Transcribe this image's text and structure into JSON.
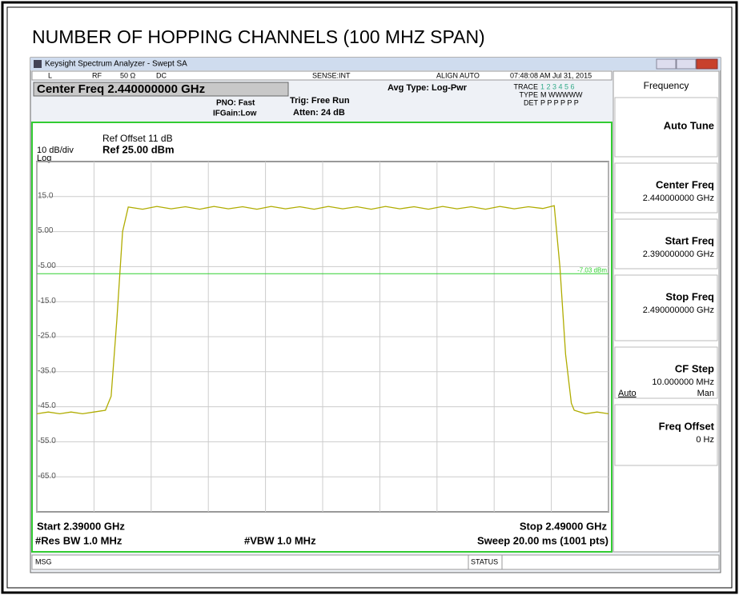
{
  "heading": "NUMBER OF HOPPING CHANNELS (100 MHZ SPAN)",
  "window_title": "Keysight Spectrum Analyzer - Swept SA",
  "status_row": [
    "L",
    "RF",
    "50 Ω",
    "DC",
    "SENSE:INT",
    "ALIGN AUTO",
    "07:48:08 AM Jul 31, 2015"
  ],
  "center_freq": "Center Freq 2.440000000 GHz",
  "pno": "PNO: Fast",
  "ifgain": "IFGain:Low",
  "trig": "Trig: Free Run",
  "atten": "Atten: 24 dB",
  "avg_type": "Avg Type: Log-Pwr",
  "trace_info": {
    "trace": "TRACE",
    "trace_nums": "1 2 3 4 5 6",
    "type": "TYPE",
    "type_val": "M WWWWW",
    "det": "DET",
    "det_val": "P P P P P P"
  },
  "ref_offset": "Ref Offset 11 dB",
  "scale": "10 dB/div",
  "ref_level": "Ref 25.00 dBm",
  "log": "Log",
  "footer": {
    "start": "Start 2.39000 GHz",
    "stop": "Stop 2.49000 GHz",
    "rbw": "#Res BW 1.0 MHz",
    "vbw": "#VBW 1.0 MHz",
    "sweep": "Sweep  20.00 ms (1001 pts)"
  },
  "msg": "MSG",
  "status": "STATUS",
  "menu": {
    "title": "Frequency",
    "keys": [
      {
        "label": "Auto Tune"
      },
      {
        "label": "Center Freq",
        "value": "2.440000000 GHz"
      },
      {
        "label": "Start Freq",
        "value": "2.390000000 GHz"
      },
      {
        "label": "Stop Freq",
        "value": "2.490000000 GHz"
      },
      {
        "label": "CF Step",
        "value": "10.000000 MHz",
        "auto": "Auto",
        "man": "Man"
      },
      {
        "label": "Freq Offset",
        "value": "0 Hz"
      }
    ]
  },
  "chart_data": {
    "type": "line",
    "x": [
      2.39,
      2.392,
      2.394,
      2.396,
      2.398,
      2.4,
      2.402,
      2.4025,
      2.403,
      2.404,
      2.405,
      2.406,
      2.4085,
      2.411,
      2.4135,
      2.416,
      2.4185,
      2.421,
      2.4235,
      2.426,
      2.4285,
      2.431,
      2.4335,
      2.436,
      2.4385,
      2.441,
      2.4435,
      2.446,
      2.4485,
      2.451,
      2.4535,
      2.456,
      2.4585,
      2.461,
      2.4635,
      2.466,
      2.4685,
      2.471,
      2.4735,
      2.476,
      2.4785,
      2.4805,
      2.4815,
      2.4825,
      2.4835,
      2.484,
      2.486,
      2.488,
      2.49
    ],
    "series": [
      {
        "color": "#b0ac00",
        "values": [
          -47,
          -46.5,
          -47,
          -46.5,
          -47,
          -46.5,
          -46,
          -44,
          -42,
          -20,
          5,
          12,
          11.4,
          12.2,
          11.5,
          12.1,
          11.4,
          12.2,
          11.5,
          12.1,
          11.4,
          12.2,
          11.5,
          12.1,
          11.4,
          12.2,
          11.5,
          12.1,
          11.4,
          12.2,
          11.5,
          12.1,
          11.4,
          12.2,
          11.5,
          12.1,
          11.4,
          12.2,
          11.5,
          12.1,
          11.6,
          12.4,
          -5,
          -30,
          -44,
          -46,
          -47,
          -46.5,
          -47
        ]
      }
    ],
    "xlim": [
      2.39,
      2.49
    ],
    "xticks": [
      2.39,
      2.4,
      2.41,
      2.42,
      2.43,
      2.44,
      2.45,
      2.46,
      2.47,
      2.48,
      2.49
    ],
    "ylim": [
      -75,
      25
    ],
    "yticks": [
      {
        "value": 15,
        "label": "15.0"
      },
      {
        "value": 5,
        "label": "5.00"
      },
      {
        "value": -5,
        "label": "-5.00"
      },
      {
        "value": -15,
        "label": "-15.0"
      },
      {
        "value": -25,
        "label": "-25.0"
      },
      {
        "value": -35,
        "label": "-35.0"
      },
      {
        "value": -45,
        "label": "-45.0"
      },
      {
        "value": -55,
        "label": "-55.0"
      },
      {
        "value": -65,
        "label": "-65.0"
      }
    ],
    "grid": true,
    "display_line": {
      "value": -7.03,
      "label": "-7.03 dBm",
      "color": "#30d030"
    }
  }
}
